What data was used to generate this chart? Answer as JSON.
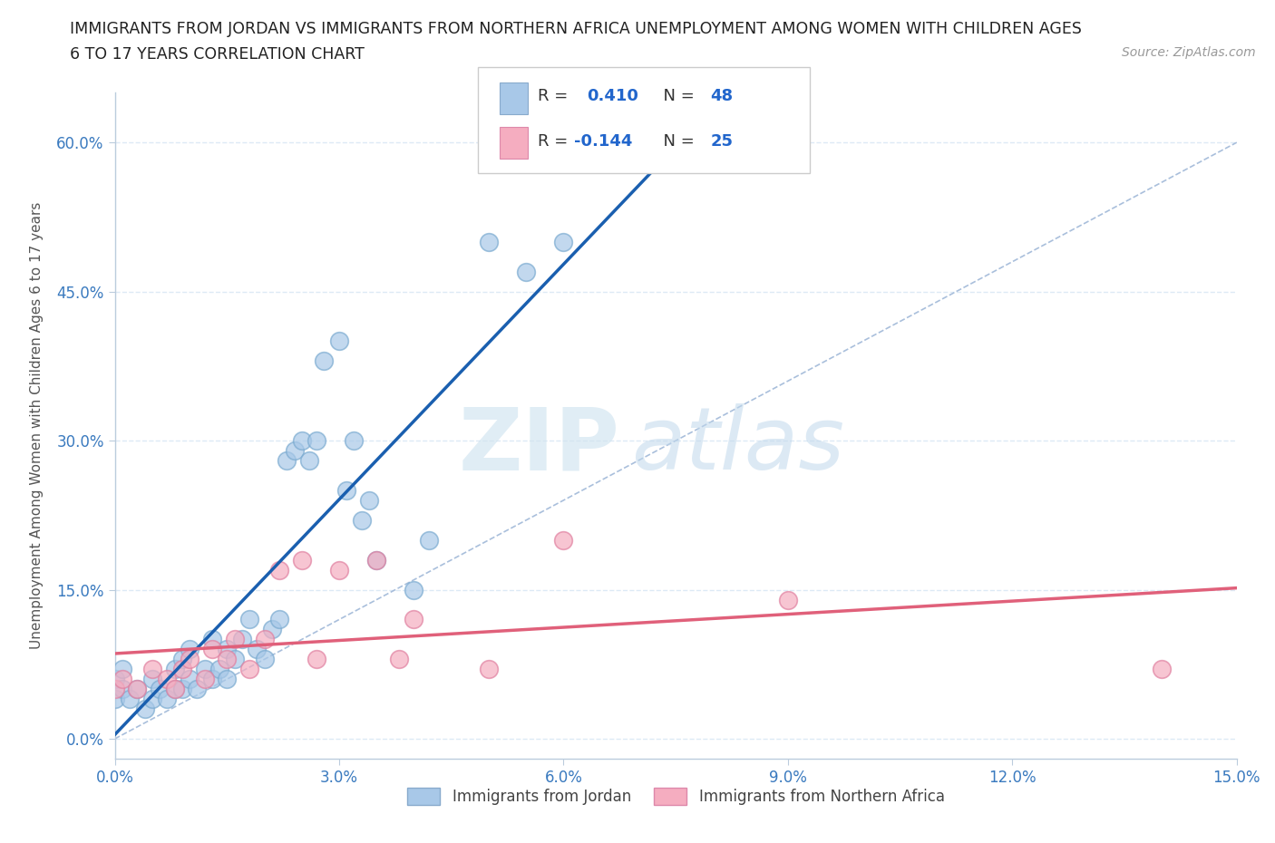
{
  "title_line1": "IMMIGRANTS FROM JORDAN VS IMMIGRANTS FROM NORTHERN AFRICA UNEMPLOYMENT AMONG WOMEN WITH CHILDREN AGES",
  "title_line2": "6 TO 17 YEARS CORRELATION CHART",
  "source": "Source: ZipAtlas.com",
  "ylabel": "Unemployment Among Women with Children Ages 6 to 17 years",
  "xlim": [
    0.0,
    0.15
  ],
  "ylim": [
    -0.02,
    0.65
  ],
  "xticks": [
    0.0,
    0.03,
    0.06,
    0.09,
    0.12,
    0.15
  ],
  "yticks": [
    0.0,
    0.15,
    0.3,
    0.45,
    0.6
  ],
  "ytick_labels": [
    "0.0%",
    "15.0%",
    "30.0%",
    "45.0%",
    "60.0%"
  ],
  "xtick_labels": [
    "0.0%",
    "3.0%",
    "6.0%",
    "9.0%",
    "12.0%",
    "15.0%"
  ],
  "jordan_color": "#a8c8e8",
  "northern_africa_color": "#f5adc0",
  "jordan_R": 0.41,
  "jordan_N": 48,
  "northern_africa_R": -0.144,
  "northern_africa_N": 25,
  "jordan_line_color": "#1a5faf",
  "northern_africa_line_color": "#e0607a",
  "diagonal_color": "#a0b8d8",
  "watermark_zip": "ZIP",
  "watermark_atlas": "atlas",
  "background_color": "#ffffff",
  "grid_color": "#ddeaf5",
  "jordan_scatter_x": [
    0.0,
    0.0,
    0.001,
    0.001,
    0.002,
    0.003,
    0.004,
    0.005,
    0.005,
    0.006,
    0.007,
    0.008,
    0.008,
    0.009,
    0.009,
    0.01,
    0.01,
    0.011,
    0.012,
    0.013,
    0.013,
    0.014,
    0.015,
    0.015,
    0.016,
    0.017,
    0.018,
    0.019,
    0.02,
    0.021,
    0.022,
    0.023,
    0.024,
    0.025,
    0.026,
    0.027,
    0.028,
    0.03,
    0.031,
    0.032,
    0.033,
    0.034,
    0.035,
    0.04,
    0.042,
    0.05,
    0.055,
    0.06
  ],
  "jordan_scatter_y": [
    0.04,
    0.06,
    0.05,
    0.07,
    0.04,
    0.05,
    0.03,
    0.04,
    0.06,
    0.05,
    0.04,
    0.05,
    0.07,
    0.05,
    0.08,
    0.06,
    0.09,
    0.05,
    0.07,
    0.06,
    0.1,
    0.07,
    0.06,
    0.09,
    0.08,
    0.1,
    0.12,
    0.09,
    0.08,
    0.11,
    0.12,
    0.28,
    0.29,
    0.3,
    0.28,
    0.3,
    0.38,
    0.4,
    0.25,
    0.3,
    0.22,
    0.24,
    0.18,
    0.15,
    0.2,
    0.5,
    0.47,
    0.5
  ],
  "na_scatter_x": [
    0.0,
    0.001,
    0.003,
    0.005,
    0.007,
    0.008,
    0.009,
    0.01,
    0.012,
    0.013,
    0.015,
    0.016,
    0.018,
    0.02,
    0.022,
    0.025,
    0.027,
    0.03,
    0.035,
    0.038,
    0.04,
    0.05,
    0.06,
    0.09,
    0.14
  ],
  "na_scatter_y": [
    0.05,
    0.06,
    0.05,
    0.07,
    0.06,
    0.05,
    0.07,
    0.08,
    0.06,
    0.09,
    0.08,
    0.1,
    0.07,
    0.1,
    0.17,
    0.18,
    0.08,
    0.17,
    0.18,
    0.08,
    0.12,
    0.07,
    0.2,
    0.14,
    0.07
  ]
}
